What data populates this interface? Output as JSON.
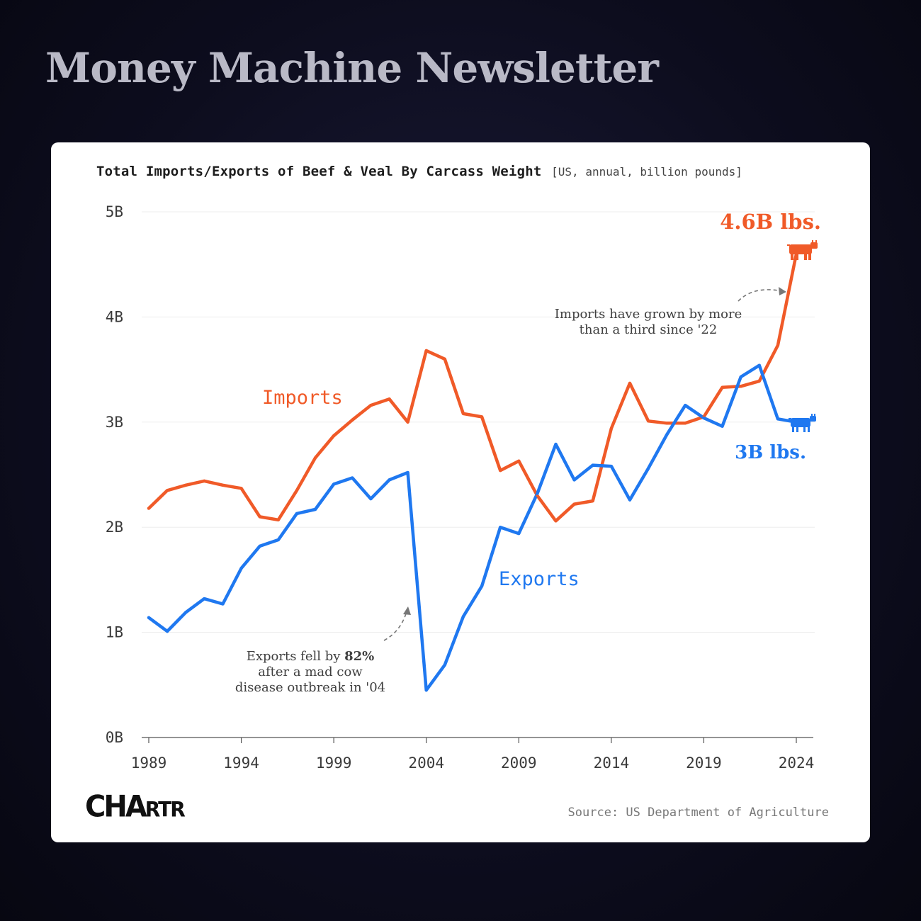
{
  "header": {
    "title": "Money Machine Newsletter"
  },
  "chart_data": {
    "type": "line",
    "title": "Total Imports/Exports of Beef & Veal By Carcass Weight",
    "subtitle": "[US, annual, billion pounds]",
    "x": [
      1989,
      1990,
      1991,
      1992,
      1993,
      1994,
      1995,
      1996,
      1997,
      1998,
      1999,
      2000,
      2001,
      2002,
      2003,
      2004,
      2005,
      2006,
      2007,
      2008,
      2009,
      2010,
      2011,
      2012,
      2013,
      2014,
      2015,
      2016,
      2017,
      2018,
      2019,
      2020,
      2021,
      2022,
      2023,
      2024
    ],
    "series": [
      {
        "name": "Imports",
        "color": "#f05a28",
        "values": [
          2.18,
          2.35,
          2.4,
          2.44,
          2.4,
          2.37,
          2.1,
          2.07,
          2.35,
          2.66,
          2.87,
          3.02,
          3.16,
          3.22,
          3.0,
          3.68,
          3.6,
          3.08,
          3.05,
          2.54,
          2.63,
          2.3,
          2.06,
          2.22,
          2.25,
          2.94,
          3.37,
          3.01,
          2.99,
          2.99,
          3.05,
          3.33,
          3.34,
          3.39,
          3.73,
          4.6
        ]
      },
      {
        "name": "Exports",
        "color": "#1f78f0",
        "values": [
          1.14,
          1.01,
          1.19,
          1.32,
          1.27,
          1.61,
          1.82,
          1.88,
          2.13,
          2.17,
          2.41,
          2.47,
          2.27,
          2.45,
          2.52,
          0.45,
          0.69,
          1.15,
          1.44,
          2.0,
          1.94,
          2.32,
          2.79,
          2.45,
          2.59,
          2.58,
          2.26,
          2.56,
          2.88,
          3.16,
          3.04,
          2.96,
          3.43,
          3.54,
          3.03,
          3.0
        ]
      }
    ],
    "yticks": [
      "0B",
      "1B",
      "2B",
      "3B",
      "4B",
      "5B"
    ],
    "ylim": [
      0,
      5
    ],
    "xticks": [
      1989,
      1994,
      1999,
      2004,
      2009,
      2014,
      2019,
      2024
    ],
    "xlim": [
      1989,
      2024
    ],
    "grid": "horizontal",
    "end_labels": {
      "imports": "4.6B lbs.",
      "exports": "3B lbs."
    },
    "annotations": {
      "imports_note": [
        "Imports have grown by more",
        "than a third since '22"
      ],
      "exports_note_line1_pre": "Exports fell by ",
      "exports_note_line1_bold": "82%",
      "exports_note_line2": "after a mad cow",
      "exports_note_line3": "disease outbreak in '04"
    }
  },
  "footer": {
    "logo": "CHARTR",
    "source": "Source: US Department of Agriculture"
  }
}
